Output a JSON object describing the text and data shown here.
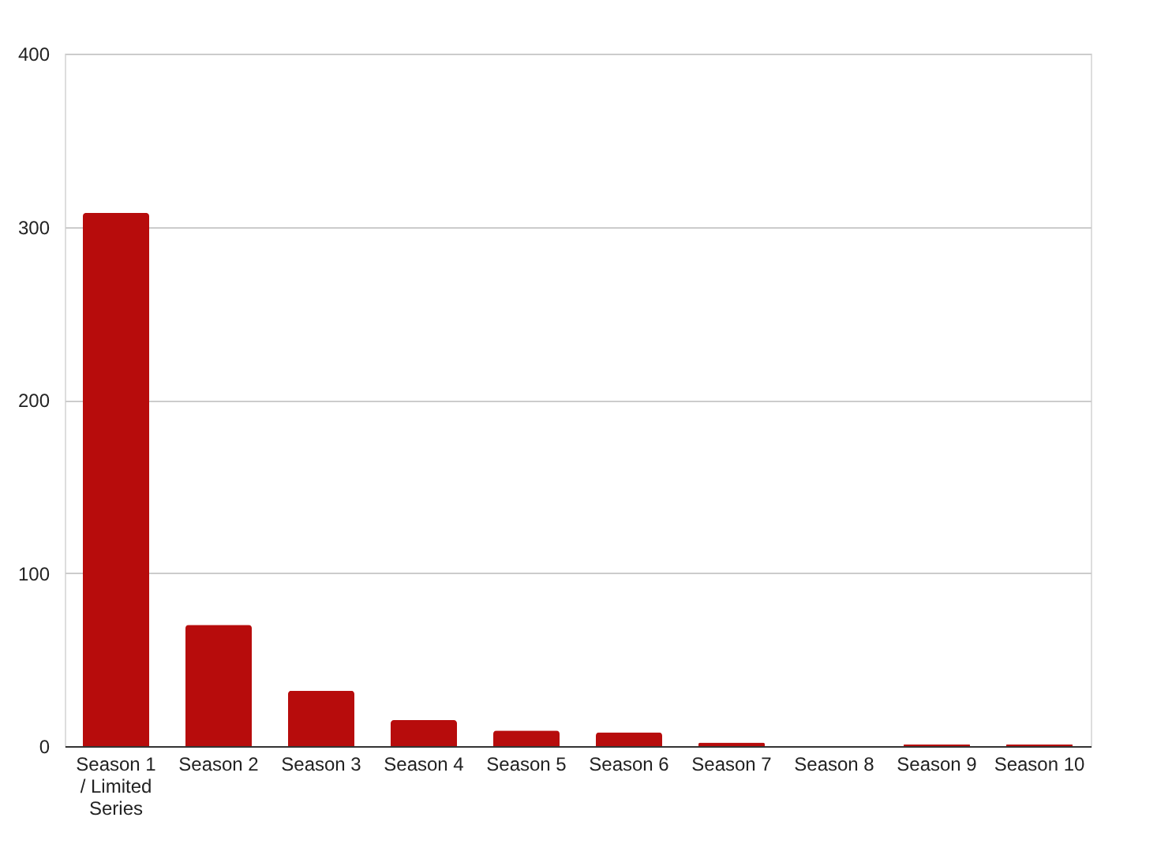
{
  "chart_data": {
    "type": "bar",
    "categories": [
      "Season 1 / Limited Series",
      "Season 2",
      "Season 3",
      "Season 4",
      "Season 5",
      "Season 6",
      "Season 7",
      "Season 8",
      "Season 9",
      "Season 10"
    ],
    "values": [
      308,
      70,
      32,
      15,
      9,
      8,
      2,
      0,
      1,
      1
    ],
    "color": "#b70c0c",
    "ylim": [
      0,
      400
    ],
    "yticks": [
      0,
      100,
      200,
      300,
      400
    ],
    "grid": "y"
  }
}
